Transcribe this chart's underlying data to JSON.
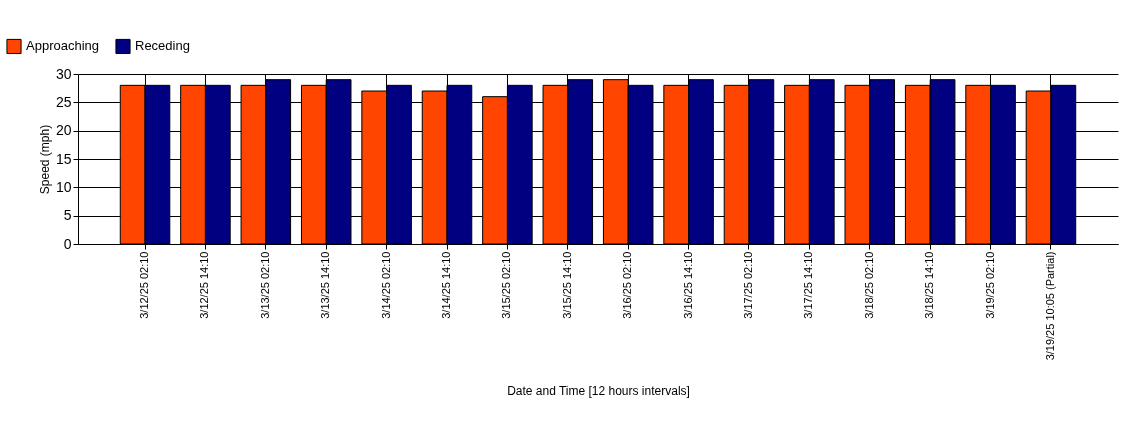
{
  "chart_data": {
    "type": "bar",
    "xlabel": "Date and Time [12 hours intervals]",
    "ylabel": "Speed (mph)",
    "categories": [
      "3/12/25 02:10",
      "3/12/25 14:10",
      "3/13/25 02:10",
      "3/13/25 14:10",
      "3/14/25 02:10",
      "3/14/25 14:10",
      "3/15/25 02:10",
      "3/15/25 14:10",
      "3/16/25 02:10",
      "3/16/25 14:10",
      "3/17/25 02:10",
      "3/17/25 14:10",
      "3/18/25 02:10",
      "3/18/25 14:10",
      "3/19/25 02:10",
      "3/19/25 10:05 (Partial)"
    ],
    "series": [
      {
        "name": "Approaching",
        "color": "#ff4500",
        "values": [
          28,
          28,
          28,
          28,
          27,
          27,
          26,
          28,
          29,
          28,
          28,
          28,
          28,
          28,
          28,
          27
        ]
      },
      {
        "name": "Receding",
        "color": "#000080",
        "values": [
          28,
          28,
          29,
          29,
          28,
          28,
          28,
          29,
          28,
          29,
          29,
          29,
          29,
          29,
          28,
          28
        ]
      }
    ],
    "ylim": [
      0,
      30
    ],
    "yticks": [
      0,
      5,
      10,
      15,
      20,
      25,
      30
    ],
    "grid": true,
    "legend": "top left"
  }
}
